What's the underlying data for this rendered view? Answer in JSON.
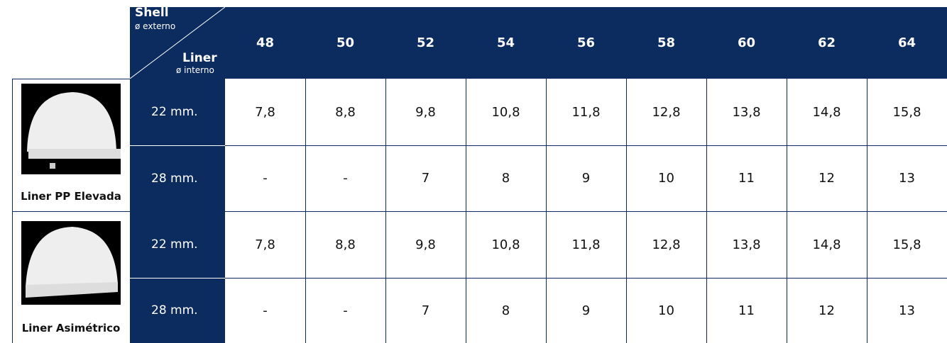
{
  "header": {
    "shell_label": "Shell",
    "shell_sub": "ø externo",
    "liner_label": "Liner",
    "liner_sub": "ø interno",
    "columns": [
      "48",
      "50",
      "52",
      "54",
      "56",
      "58",
      "60",
      "62",
      "64"
    ]
  },
  "products": [
    {
      "name": "Liner PP Elevada",
      "rows": [
        {
          "size": "22 mm.",
          "values": [
            "7,8",
            "8,8",
            "9,8",
            "10,8",
            "11,8",
            "12,8",
            "13,8",
            "14,8",
            "15,8"
          ]
        },
        {
          "size": "28 mm.",
          "values": [
            "-",
            "-",
            "7",
            "8",
            "9",
            "10",
            "11",
            "12",
            "13"
          ]
        }
      ]
    },
    {
      "name": "Liner Asimétrico",
      "rows": [
        {
          "size": "22 mm.",
          "values": [
            "7,8",
            "8,8",
            "9,8",
            "10,8",
            "11,8",
            "12,8",
            "13,8",
            "14,8",
            "15,8"
          ]
        },
        {
          "size": "28 mm.",
          "values": [
            "-",
            "-",
            "7",
            "8",
            "9",
            "10",
            "11",
            "12",
            "13"
          ]
        }
      ]
    }
  ]
}
